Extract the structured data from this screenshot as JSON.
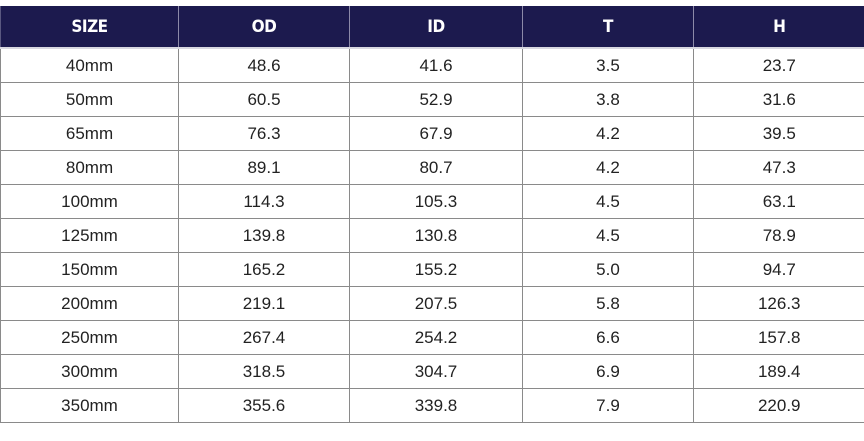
{
  "columns": [
    "SIZE",
    "OD",
    "ID",
    "T",
    "H"
  ],
  "rows": [
    [
      "40mm",
      "48.6",
      "41.6",
      "3.5",
      "23.7"
    ],
    [
      "50mm",
      "60.5",
      "52.9",
      "3.8",
      "31.6"
    ],
    [
      "65mm",
      "76.3",
      "67.9",
      "4.2",
      "39.5"
    ],
    [
      "80mm",
      "89.1",
      "80.7",
      "4.2",
      "47.3"
    ],
    [
      "100mm",
      "114.3",
      "105.3",
      "4.5",
      "63.1"
    ],
    [
      "125mm",
      "139.8",
      "130.8",
      "4.5",
      "78.9"
    ],
    [
      "150mm",
      "165.2",
      "155.2",
      "5.0",
      "94.7"
    ],
    [
      "200mm",
      "219.1",
      "207.5",
      "5.8",
      "126.3"
    ],
    [
      "250mm",
      "267.4",
      "254.2",
      "6.6",
      "157.8"
    ],
    [
      "300mm",
      "318.5",
      "304.7",
      "6.9",
      "189.4"
    ],
    [
      "350mm",
      "355.6",
      "339.8",
      "7.9",
      "220.9"
    ]
  ],
  "colors": {
    "header_bg": "#1c1a4e",
    "header_text": "#ffffff",
    "grid_line": "#8a8a8a"
  }
}
